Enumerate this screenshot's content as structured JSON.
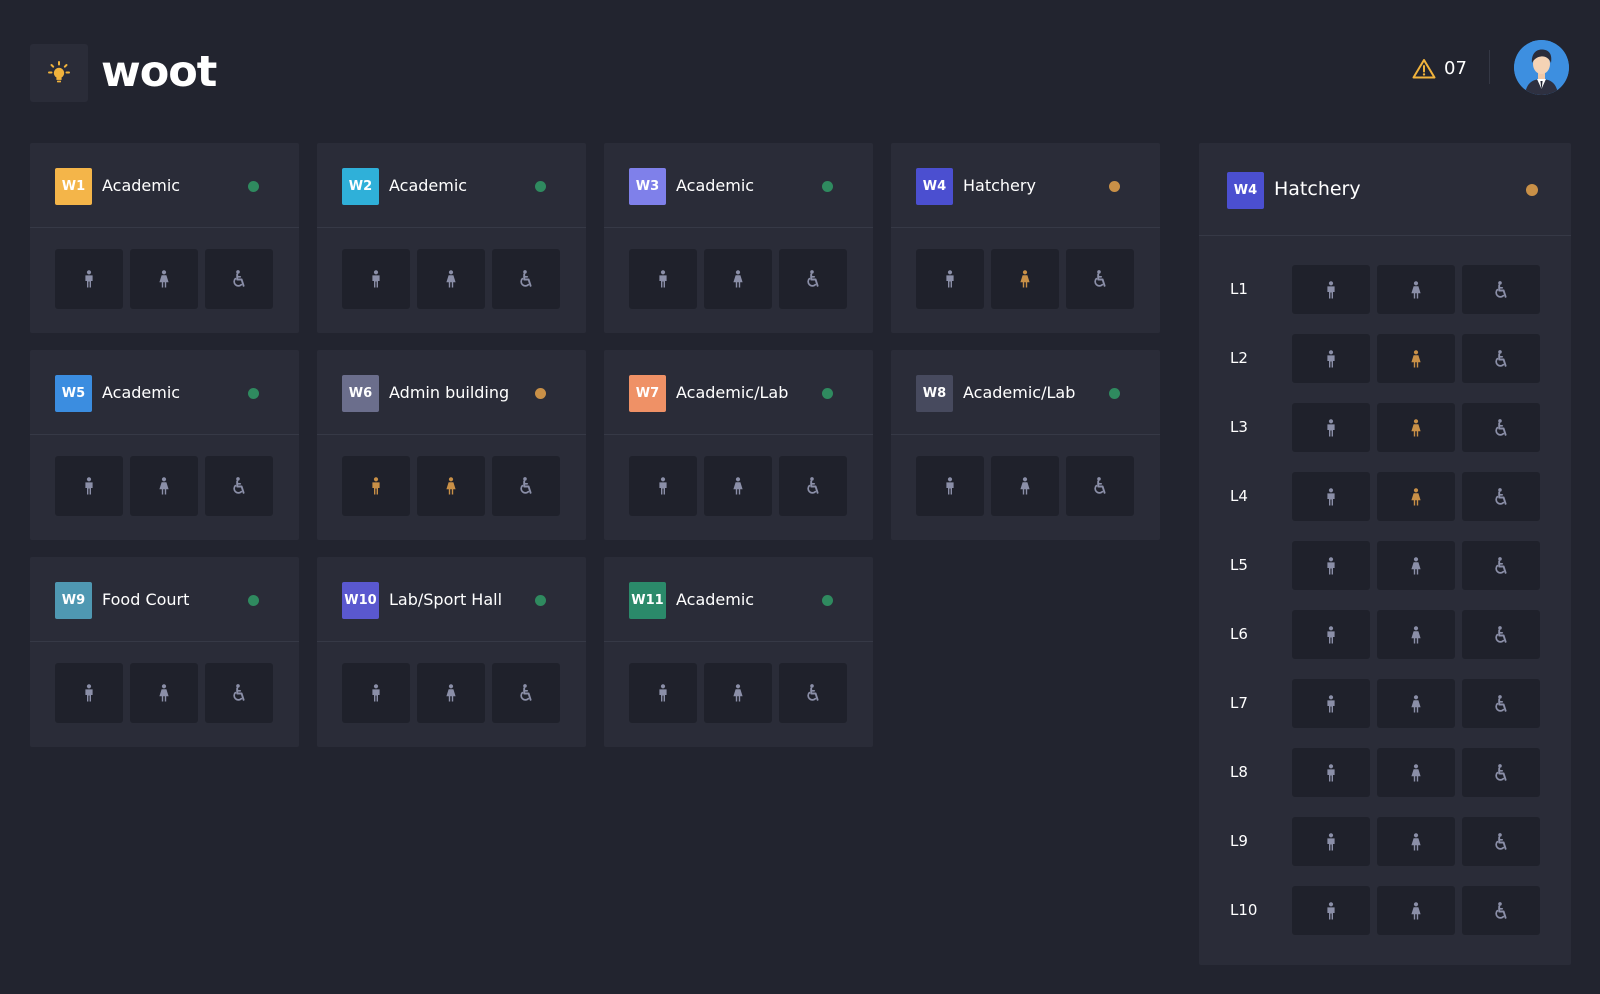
{
  "app": {
    "name": "woot",
    "logo_icon": "lightbulb-icon",
    "alert_icon": "warning-icon",
    "alert_count": "07",
    "avatar_icon": "user-avatar-icon"
  },
  "colors": {
    "background": "#22242f",
    "card": "#2a2c38",
    "tile": "#1f212b",
    "icon_ok": "#8b8fa8",
    "icon_alert": "#c99047",
    "status_ok": "#2f8a5f",
    "status_warn": "#c99047",
    "alert_yellow": "#f1b33c"
  },
  "tile_icons": [
    "male-restroom-icon",
    "female-restroom-icon",
    "wheelchair-restroom-icon"
  ],
  "wings": [
    {
      "code": "W1",
      "name": "Academic",
      "badge_color": "#f4b549",
      "status": "ok",
      "alerts": [
        false,
        false,
        false
      ]
    },
    {
      "code": "W2",
      "name": "Academic",
      "badge_color": "#2fb0d9",
      "status": "ok",
      "alerts": [
        false,
        false,
        false
      ]
    },
    {
      "code": "W3",
      "name": "Academic",
      "badge_color": "#7f80ea",
      "status": "ok",
      "alerts": [
        false,
        false,
        false
      ]
    },
    {
      "code": "W4",
      "name": "Hatchery",
      "badge_color": "#4b4fd0",
      "status": "warn",
      "alerts": [
        false,
        true,
        false
      ]
    },
    {
      "code": "W5",
      "name": "Academic",
      "badge_color": "#3b8de0",
      "status": "ok",
      "alerts": [
        false,
        false,
        false
      ]
    },
    {
      "code": "W6",
      "name": "Admin building",
      "badge_color": "#6b6e8c",
      "status": "warn",
      "alerts": [
        true,
        true,
        false
      ]
    },
    {
      "code": "W7",
      "name": "Academic/Lab",
      "badge_color": "#ef9166",
      "status": "ok",
      "alerts": [
        false,
        false,
        false
      ]
    },
    {
      "code": "W8",
      "name": "Academic/Lab",
      "badge_color": "#474a5e",
      "status": "ok",
      "alerts": [
        false,
        false,
        false
      ]
    },
    {
      "code": "W9",
      "name": "Food Court",
      "badge_color": "#4f98b2",
      "status": "ok",
      "alerts": [
        false,
        false,
        false
      ]
    },
    {
      "code": "W10",
      "name": "Lab/Sport Hall",
      "badge_color": "#5a58cf",
      "status": "ok",
      "alerts": [
        false,
        false,
        false
      ]
    },
    {
      "code": "W11",
      "name": "Academic",
      "badge_color": "#2b8a6a",
      "status": "ok",
      "alerts": [
        false,
        false,
        false
      ]
    }
  ],
  "detail": {
    "code": "W4",
    "name": "Hatchery",
    "badge_color": "#4b4fd0",
    "status": "warn",
    "levels": [
      {
        "label": "L1",
        "alerts": [
          false,
          false,
          false
        ]
      },
      {
        "label": "L2",
        "alerts": [
          false,
          true,
          false
        ]
      },
      {
        "label": "L3",
        "alerts": [
          false,
          true,
          false
        ]
      },
      {
        "label": "L4",
        "alerts": [
          false,
          true,
          false
        ]
      },
      {
        "label": "L5",
        "alerts": [
          false,
          false,
          false
        ]
      },
      {
        "label": "L6",
        "alerts": [
          false,
          false,
          false
        ]
      },
      {
        "label": "L7",
        "alerts": [
          false,
          false,
          false
        ]
      },
      {
        "label": "L8",
        "alerts": [
          false,
          false,
          false
        ]
      },
      {
        "label": "L9",
        "alerts": [
          false,
          false,
          false
        ]
      },
      {
        "label": "L10",
        "alerts": [
          false,
          false,
          false
        ]
      }
    ]
  }
}
